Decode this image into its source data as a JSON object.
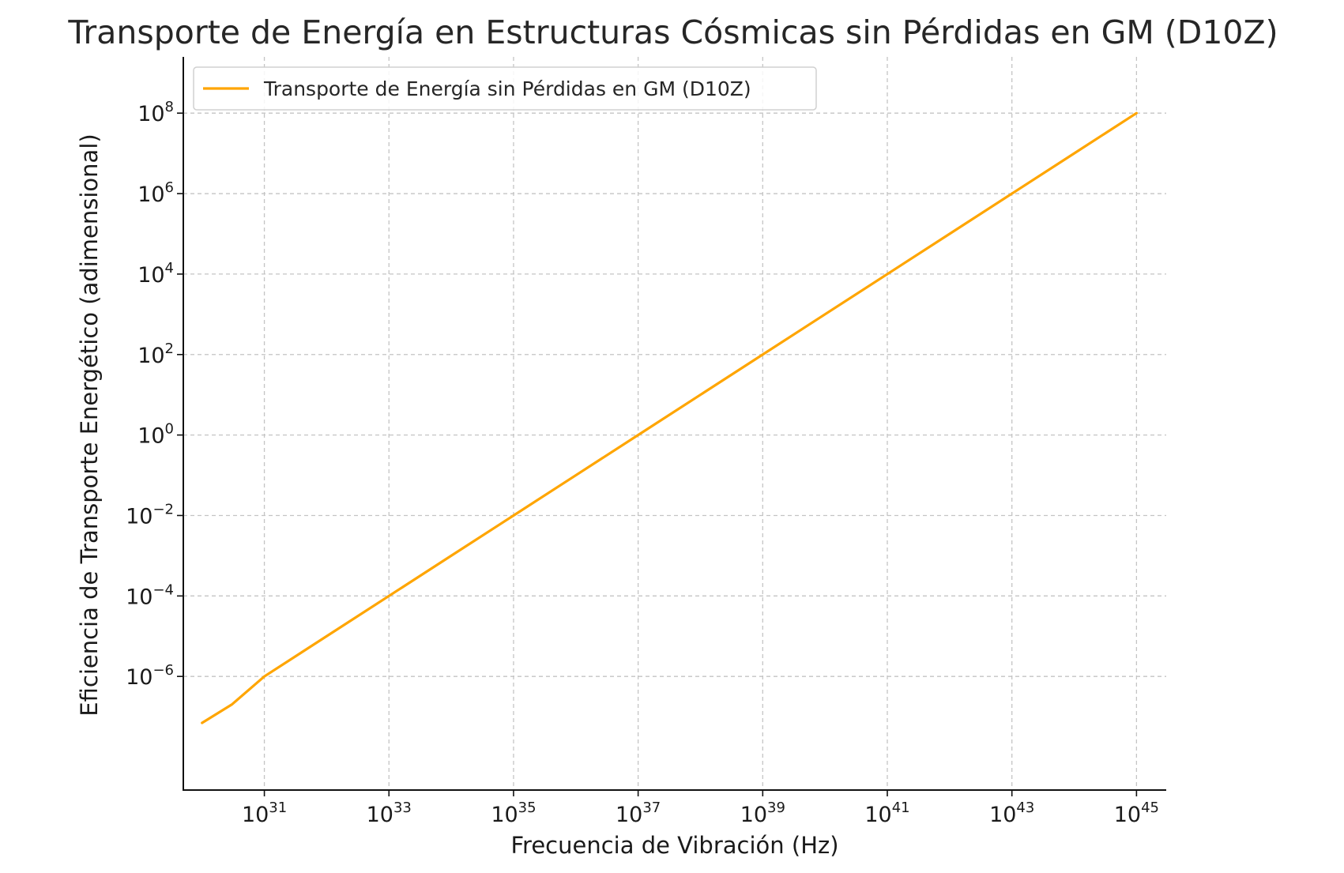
{
  "chart_data": {
    "type": "line",
    "title": "Transporte de Energía en Estructuras Cósmicas sin Pérdidas en GM (D10Z)",
    "xlabel": "Frecuencia de Vibración (Hz)",
    "ylabel": "Eficiencia de Transporte Energético (adimensional)",
    "x_scale": "log",
    "y_scale": "log",
    "xlim": [
      5e+29,
      3e+45
    ],
    "ylim": [
      1.5e-09,
      2500000000.0
    ],
    "x_ticks": [
      {
        "base": "10",
        "exp": "31",
        "value": 1e+31
      },
      {
        "base": "10",
        "exp": "33",
        "value": 1e+33
      },
      {
        "base": "10",
        "exp": "35",
        "value": 1e+35
      },
      {
        "base": "10",
        "exp": "37",
        "value": 1e+37
      },
      {
        "base": "10",
        "exp": "39",
        "value": 1e+39
      },
      {
        "base": "10",
        "exp": "41",
        "value": 1e+41
      },
      {
        "base": "10",
        "exp": "43",
        "value": 1e+43
      },
      {
        "base": "10",
        "exp": "45",
        "value": 1e+45
      }
    ],
    "y_ticks": [
      {
        "base": "10",
        "exp": "−6",
        "value": 1e-06
      },
      {
        "base": "10",
        "exp": "−4",
        "value": 0.0001
      },
      {
        "base": "10",
        "exp": "−2",
        "value": 0.01
      },
      {
        "base": "10",
        "exp": "0",
        "value": 1
      },
      {
        "base": "10",
        "exp": "2",
        "value": 100.0
      },
      {
        "base": "10",
        "exp": "4",
        "value": 10000.0
      },
      {
        "base": "10",
        "exp": "6",
        "value": 1000000.0
      },
      {
        "base": "10",
        "exp": "8",
        "value": 100000000.0
      }
    ],
    "grid": true,
    "legend_position": "top-left",
    "series": [
      {
        "name": "Transporte de Energía sin Pérdidas en GM (D10Z)",
        "color": "#ffa500",
        "x": [
          1e+30,
          3e+30,
          1e+31,
          1e+32,
          1e+33,
          1e+34,
          1e+35,
          1e+36,
          1e+37,
          1e+38,
          1e+39,
          1e+40,
          1e+41,
          1e+42,
          1e+43,
          1e+44,
          1e+45
        ],
        "y": [
          7e-08,
          2e-07,
          1e-06,
          1e-05,
          0.0001,
          0.001,
          0.01,
          0.1,
          1,
          10,
          100,
          1000,
          10000,
          100000.0,
          1000000.0,
          10000000.0,
          100000000.0
        ]
      }
    ]
  }
}
